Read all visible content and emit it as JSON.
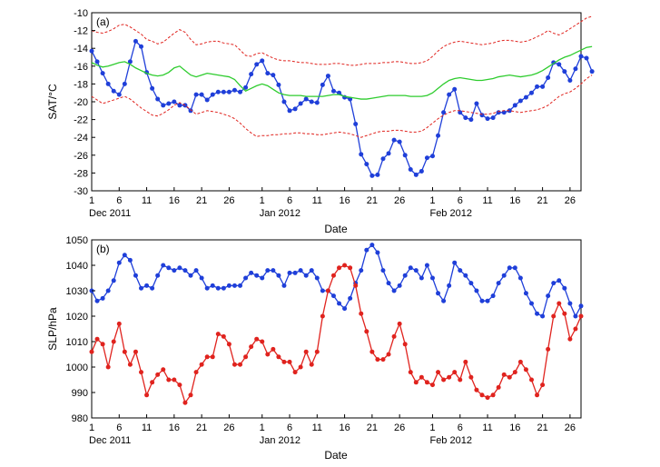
{
  "chart_data": [
    {
      "type": "line",
      "panel_label": "(a)",
      "xlabel": "Date",
      "ylabel": "SAT/°C",
      "ylim": [
        -30,
        -10
      ],
      "yticks": [
        -30,
        -28,
        -26,
        -24,
        -22,
        -20,
        -18,
        -16,
        -14,
        -12,
        -10
      ],
      "xlim": [
        1,
        90
      ],
      "xticks": [
        1,
        6,
        11,
        16,
        21,
        26,
        32,
        37,
        42,
        47,
        52,
        57,
        63,
        68,
        73,
        78,
        83,
        88
      ],
      "xtick_labels": [
        "1",
        "6",
        "11",
        "16",
        "21",
        "26",
        "1",
        "6",
        "11",
        "16",
        "21",
        "26",
        "1",
        "6",
        "11",
        "16",
        "21",
        "26"
      ],
      "month_labels": [
        {
          "text": "Dec 2011",
          "x": 1
        },
        {
          "text": "Jan 2012",
          "x": 32
        },
        {
          "text": "Feb 2012",
          "x": 63
        }
      ],
      "grid": false,
      "series": [
        {
          "color": "#1f3fd9",
          "style": "solid",
          "markers": true,
          "values": [
            -14.3,
            -15.5,
            -16.8,
            -18.0,
            -18.8,
            -19.2,
            -18.0,
            -15.5,
            -13.2,
            -13.8,
            -16.7,
            -18.5,
            -19.7,
            -20.4,
            -20.2,
            -20.0,
            -20.4,
            -20.4,
            -21.0,
            -19.2,
            -19.2,
            -19.8,
            -19.2,
            -18.9,
            -18.9,
            -18.9,
            -18.7,
            -18.9,
            -18.4,
            -16.9,
            -15.8,
            -15.4,
            -16.8,
            -17.0,
            -18.1,
            -20.0,
            -21.0,
            -20.8,
            -20.2,
            -19.7,
            -20.0,
            -20.1,
            -18.1,
            -17.1,
            -18.8,
            -19.0,
            -19.5,
            -19.7,
            -22.5,
            -25.9,
            -27.0,
            -28.3,
            -28.2,
            -26.4,
            -25.8,
            -24.3,
            -24.5,
            -26.0,
            -27.6,
            -28.2,
            -27.8,
            -26.3,
            -26.1,
            -23.8,
            -21.2,
            -19.2,
            -18.6,
            -21.2,
            -21.8,
            -22.0,
            -20.2,
            -21.5,
            -21.9,
            -21.8,
            -21.2,
            -21.2,
            -21.0,
            -20.4,
            -19.9,
            -19.5,
            -19.0,
            -18.3,
            -18.3,
            -17.3,
            -15.6,
            -15.8,
            -16.6,
            -17.6,
            -16.3,
            -14.9,
            -15.1,
            -16.6
          ]
        },
        {
          "color": "#2ecc2e",
          "style": "solid",
          "markers": false,
          "values": [
            -15.6,
            -15.9,
            -16.1,
            -16.0,
            -15.8,
            -15.6,
            -15.5,
            -15.8,
            -16.2,
            -16.5,
            -16.8,
            -17.0,
            -17.1,
            -17.0,
            -16.7,
            -16.2,
            -16.0,
            -16.5,
            -17.0,
            -17.2,
            -17.0,
            -16.8,
            -16.9,
            -17.0,
            -17.1,
            -17.2,
            -17.5,
            -18.2,
            -18.8,
            -18.5,
            -18.2,
            -18.0,
            -18.2,
            -18.6,
            -19.0,
            -19.2,
            -19.3,
            -19.3,
            -19.3,
            -19.4,
            -19.4,
            -19.4,
            -19.4,
            -19.3,
            -19.2,
            -19.2,
            -19.4,
            -19.5,
            -19.6,
            -19.7,
            -19.7,
            -19.6,
            -19.5,
            -19.4,
            -19.3,
            -19.3,
            -19.3,
            -19.3,
            -19.4,
            -19.4,
            -19.4,
            -19.3,
            -19.0,
            -18.5,
            -18.0,
            -17.6,
            -17.4,
            -17.3,
            -17.4,
            -17.5,
            -17.6,
            -17.6,
            -17.5,
            -17.4,
            -17.2,
            -17.1,
            -17.0,
            -17.1,
            -17.2,
            -17.1,
            -17.0,
            -16.8,
            -16.5,
            -16.1,
            -15.7,
            -15.3,
            -15.0,
            -14.8,
            -14.5,
            -14.2,
            -13.9,
            -13.8
          ]
        },
        {
          "color": "#e0231e",
          "style": "dashed",
          "markers": false,
          "values": [
            -12.0,
            -12.2,
            -12.3,
            -12.1,
            -11.8,
            -11.4,
            -11.3,
            -11.6,
            -12.0,
            -12.4,
            -13.0,
            -13.2,
            -13.5,
            -13.3,
            -12.8,
            -12.3,
            -11.9,
            -12.2,
            -13.0,
            -13.6,
            -13.5,
            -13.3,
            -13.2,
            -13.2,
            -13.4,
            -13.5,
            -13.6,
            -14.2,
            -14.8,
            -14.9,
            -14.6,
            -14.5,
            -14.8,
            -15.1,
            -15.3,
            -15.4,
            -15.4,
            -15.5,
            -15.6,
            -15.6,
            -15.7,
            -15.8,
            -15.8,
            -15.8,
            -15.7,
            -15.7,
            -15.8,
            -15.9,
            -15.9,
            -15.8,
            -15.7,
            -15.7,
            -15.7,
            -15.6,
            -15.6,
            -15.5,
            -15.5,
            -15.6,
            -15.7,
            -15.7,
            -15.6,
            -15.4,
            -14.9,
            -14.3,
            -13.8,
            -13.5,
            -13.3,
            -13.2,
            -13.3,
            -13.4,
            -13.5,
            -13.6,
            -13.5,
            -13.4,
            -13.2,
            -13.1,
            -13.1,
            -13.2,
            -13.3,
            -13.2,
            -13.0,
            -12.7,
            -12.4,
            -12.0,
            -12.3,
            -12.5,
            -12.2,
            -11.8,
            -11.4,
            -11.0,
            -10.6,
            -10.4
          ]
        },
        {
          "color": "#e0231e",
          "style": "dashed",
          "markers": false,
          "values": [
            -19.4,
            -19.8,
            -20.2,
            -20.0,
            -19.8,
            -19.6,
            -19.4,
            -19.7,
            -20.2,
            -20.7,
            -21.1,
            -21.5,
            -21.6,
            -21.3,
            -20.9,
            -20.4,
            -20.1,
            -20.4,
            -20.9,
            -21.4,
            -21.2,
            -21.0,
            -21.1,
            -21.2,
            -21.4,
            -21.6,
            -21.9,
            -22.4,
            -23.0,
            -23.5,
            -23.9,
            -23.8,
            -23.8,
            -23.7,
            -23.7,
            -23.6,
            -23.6,
            -23.5,
            -23.5,
            -23.6,
            -23.6,
            -23.7,
            -23.7,
            -23.6,
            -23.5,
            -23.4,
            -23.5,
            -23.6,
            -23.8,
            -24.0,
            -23.8,
            -23.6,
            -23.4,
            -23.3,
            -23.3,
            -23.2,
            -23.2,
            -23.3,
            -23.4,
            -23.4,
            -23.3,
            -22.9,
            -22.4,
            -21.9,
            -21.5,
            -21.2,
            -21.0,
            -21.0,
            -21.1,
            -21.2,
            -21.3,
            -21.4,
            -21.4,
            -21.3,
            -21.1,
            -21.0,
            -21.0,
            -21.1,
            -21.2,
            -21.1,
            -21.0,
            -20.9,
            -20.7,
            -20.4,
            -19.9,
            -19.4,
            -19.1,
            -18.9,
            -18.5,
            -18.0,
            -17.4,
            -17.0
          ]
        }
      ]
    },
    {
      "type": "line",
      "panel_label": "(b)",
      "xlabel": "Date",
      "ylabel": "SLP/hPa",
      "ylim": [
        980,
        1050
      ],
      "yticks": [
        980,
        990,
        1000,
        1010,
        1020,
        1030,
        1040,
        1050
      ],
      "xlim": [
        1,
        90
      ],
      "xticks": [
        1,
        6,
        11,
        16,
        21,
        26,
        32,
        37,
        42,
        47,
        52,
        57,
        63,
        68,
        73,
        78,
        83,
        88
      ],
      "xtick_labels": [
        "1",
        "6",
        "11",
        "16",
        "21",
        "26",
        "1",
        "6",
        "11",
        "16",
        "21",
        "26",
        "1",
        "6",
        "11",
        "16",
        "21",
        "26"
      ],
      "month_labels": [
        {
          "text": "Dec 2011",
          "x": 1
        },
        {
          "text": "Jan 2012",
          "x": 32
        },
        {
          "text": "Feb 2012",
          "x": 63
        }
      ],
      "grid": false,
      "series": [
        {
          "color": "#1f3fd9",
          "style": "solid",
          "markers": true,
          "values": [
            1030,
            1026,
            1027,
            1030,
            1034,
            1041,
            1044,
            1042,
            1036,
            1031,
            1032,
            1031,
            1036,
            1040,
            1039,
            1038,
            1039,
            1038,
            1036,
            1038,
            1035,
            1031,
            1032,
            1031,
            1031,
            1032,
            1032,
            1032,
            1035,
            1037,
            1036,
            1035,
            1038,
            1038,
            1036,
            1032,
            1037,
            1037,
            1038,
            1036,
            1038,
            1035,
            1030,
            1030,
            1028,
            1025,
            1023,
            1027,
            1033,
            1038,
            1046,
            1048,
            1045,
            1038,
            1033,
            1030,
            1032,
            1036,
            1039,
            1038,
            1035,
            1040,
            1035,
            1029,
            1026,
            1032,
            1041,
            1038,
            1036,
            1033,
            1030,
            1026,
            1026,
            1028,
            1033,
            1036,
            1039,
            1039,
            1035,
            1029,
            1025,
            1021,
            1020,
            1028,
            1033,
            1034,
            1031,
            1025,
            1020,
            1024
          ]
        },
        {
          "color": "#e0231e",
          "style": "solid",
          "markers": true,
          "values": [
            1006,
            1011,
            1009,
            1000,
            1010,
            1017,
            1006,
            1001,
            1006,
            998,
            989,
            994,
            997,
            999,
            995,
            995,
            993,
            986,
            989,
            998,
            1001,
            1004,
            1004,
            1013,
            1012,
            1009,
            1001,
            1001,
            1004,
            1008,
            1011,
            1010,
            1005,
            1007,
            1004,
            1002,
            1002,
            998,
            1000,
            1006,
            1001,
            1006,
            1020,
            1030,
            1036,
            1039,
            1040,
            1039,
            1032,
            1021,
            1014,
            1006,
            1003,
            1003,
            1005,
            1012,
            1017,
            1009,
            998,
            994,
            996,
            994,
            993,
            998,
            995,
            996,
            998,
            995,
            1002,
            996,
            991,
            989,
            988,
            989,
            992,
            997,
            996,
            998,
            1002,
            999,
            995,
            989,
            993,
            1007,
            1020,
            1025,
            1021,
            1011,
            1015,
            1020
          ]
        }
      ]
    }
  ]
}
